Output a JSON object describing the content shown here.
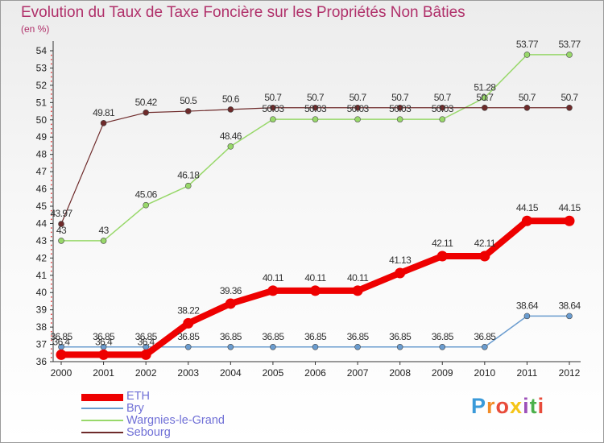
{
  "chart_data": {
    "type": "line",
    "title": "Evolution du Taux de Taxe Foncière sur les Propriétés Non Bâties",
    "unit_label": "(en %)",
    "xlabel": "",
    "ylabel": "",
    "categories": [
      "2000",
      "2001",
      "2002",
      "2003",
      "2004",
      "2005",
      "2006",
      "2007",
      "2008",
      "2009",
      "2010",
      "2011",
      "2012"
    ],
    "ylim": [
      36,
      54
    ],
    "yticks": [
      36,
      37,
      38,
      39,
      40,
      41,
      42,
      43,
      44,
      45,
      46,
      47,
      48,
      49,
      50,
      51,
      52,
      53,
      54
    ],
    "grid": false,
    "legend_position": "bottom-left",
    "series": [
      {
        "name": "ETH",
        "color": "#ee0000",
        "values": [
          36.4,
          36.4,
          36.4,
          38.22,
          39.36,
          40.11,
          40.11,
          40.11,
          41.13,
          42.11,
          42.11,
          44.15,
          44.15
        ],
        "labels": [
          "36.4",
          "36.4",
          "36.4",
          "38.22",
          "39.36",
          "40.11",
          "40.11",
          "40.11",
          "41.13",
          "42.11",
          "42.11",
          "44.15",
          "44.15"
        ]
      },
      {
        "name": "Bry",
        "color": "#6a9ccf",
        "values": [
          36.85,
          36.85,
          36.85,
          36.85,
          36.85,
          36.85,
          36.85,
          36.85,
          36.85,
          36.85,
          36.85,
          38.64,
          38.64
        ],
        "labels": [
          "36.85",
          "36.85",
          "36.85",
          "36.85",
          "36.85",
          "36.85",
          "36.85",
          "36.85",
          "36.85",
          "36.85",
          "36.85",
          "38.64",
          "38.64"
        ]
      },
      {
        "name": "Wargnies-le-Grand",
        "color": "#98d86a",
        "values": [
          43,
          43,
          45.06,
          46.18,
          48.46,
          50.03,
          50.03,
          50.03,
          50.03,
          50.03,
          51.28,
          53.77,
          53.77
        ],
        "labels": [
          "43",
          "43",
          "45.06",
          "46.18",
          "48.46",
          "50.03",
          "50.03",
          "50.03",
          "50.03",
          "50.03",
          "51.28",
          "53.77",
          "53.77"
        ]
      },
      {
        "name": "Sebourg",
        "color": "#6e2a2a",
        "values": [
          43.97,
          49.81,
          50.42,
          50.5,
          50.6,
          50.7,
          50.7,
          50.7,
          50.7,
          50.7,
          50.7,
          50.7,
          50.7
        ],
        "labels": [
          "43.97",
          "49.81",
          "50.42",
          "50.5",
          "50.6",
          "50.7",
          "50.7",
          "50.7",
          "50.7",
          "50.7",
          "50.7",
          "50.7",
          "50.7"
        ]
      }
    ]
  },
  "logo": {
    "letters": [
      "P",
      "r",
      "o",
      "x",
      "i",
      "t",
      "i"
    ],
    "colors": [
      "#3a9ad9",
      "#f28c28",
      "#e84b3a",
      "#f5c518",
      "#9c4fb8",
      "#4bb04b",
      "#e84b3a"
    ]
  }
}
